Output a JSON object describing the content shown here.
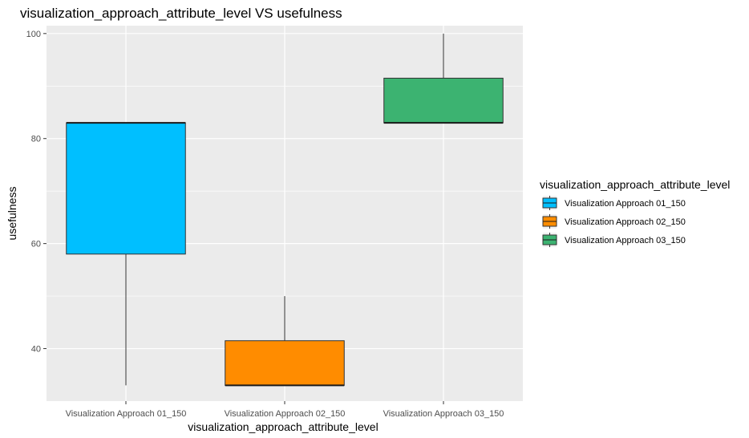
{
  "chart_data": {
    "type": "box",
    "title": "visualization_approach_attribute_level VS usefulness",
    "xlabel": "visualization_approach_attribute_level",
    "ylabel": "usefulness",
    "ylim": [
      30,
      101.5
    ],
    "yticks": [
      40,
      60,
      80,
      100
    ],
    "grid": true,
    "legend_position": "right",
    "legend_title": "visualization_approach_attribute_level",
    "categories": [
      "Visualization Approach 01_150",
      "Visualization Approach 02_150",
      "Visualization Approach 03_150"
    ],
    "series": [
      {
        "name": "Visualization Approach 01_150",
        "color": "#00BFFF",
        "min": 33,
        "q1": 58,
        "median": 83,
        "q3": 83,
        "max": 83
      },
      {
        "name": "Visualization Approach 02_150",
        "color": "#FF8C00",
        "min": 33,
        "q1": 33,
        "median": 33,
        "q3": 41.5,
        "max": 50
      },
      {
        "name": "Visualization Approach 03_150",
        "color": "#3CB371",
        "min": 83,
        "q1": 83,
        "median": 83,
        "q3": 91.5,
        "max": 100
      }
    ]
  }
}
